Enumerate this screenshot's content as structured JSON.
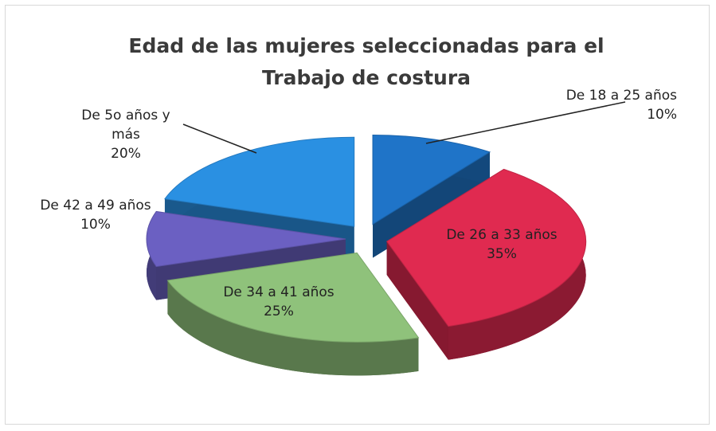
{
  "chart_data": {
    "type": "pie",
    "title": "Edad de las mujeres seleccionadas para el Trabajo de costura",
    "categories": [
      "De 18 a 25 años",
      "De 26 a 33 años",
      "De 34 a 41 años",
      "De 42 a 49 años",
      "De 5o años y más"
    ],
    "values": [
      10,
      35,
      25,
      10,
      20
    ],
    "value_labels": [
      "10%",
      "35%",
      "25%",
      "10%",
      "20%"
    ],
    "colors": [
      "#1f74c8",
      "#e02a50",
      "#8fc27b",
      "#6b60c2",
      "#2a90e2"
    ]
  }
}
